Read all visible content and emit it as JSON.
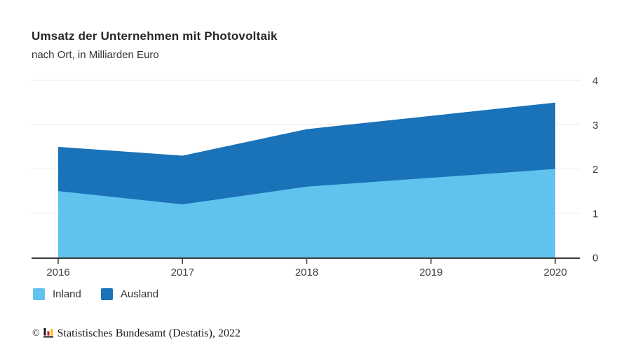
{
  "header": {
    "title": "Umsatz der Unternehmen mit Photovoltaik",
    "subtitle": "nach Ort, in Milliarden Euro"
  },
  "chart_data": {
    "type": "area",
    "stacked": true,
    "categories": [
      "2016",
      "2017",
      "2018",
      "2019",
      "2020"
    ],
    "series": [
      {
        "name": "Inland",
        "color": "#5FC3EE",
        "values": [
          1.5,
          1.2,
          1.6,
          1.8,
          2.0
        ]
      },
      {
        "name": "Ausland",
        "color": "#1A72B8",
        "values": [
          1.0,
          1.1,
          1.3,
          1.4,
          1.5
        ]
      }
    ],
    "stacked_totals": [
      2.5,
      2.3,
      2.9,
      3.2,
      3.5
    ],
    "title": "Umsatz der Unternehmen mit Photovoltaik",
    "subtitle": "nach Ort, in Milliarden Euro",
    "xlabel": "",
    "ylabel": "",
    "ylim": [
      0,
      4
    ],
    "yticks": [
      0,
      1,
      2,
      3,
      4
    ],
    "y_axis_side": "right",
    "grid": true,
    "legend_position": "bottom-left",
    "colors": {
      "grid_line": "#E8E8E8",
      "axis_line": "#3C3C3C",
      "tick_label": "#3C3C3C"
    }
  },
  "footer": {
    "symbol": "©",
    "logo": "destatis-bar-chart-icon",
    "text": "Statistisches Bundesamt (Destatis), 2022"
  }
}
